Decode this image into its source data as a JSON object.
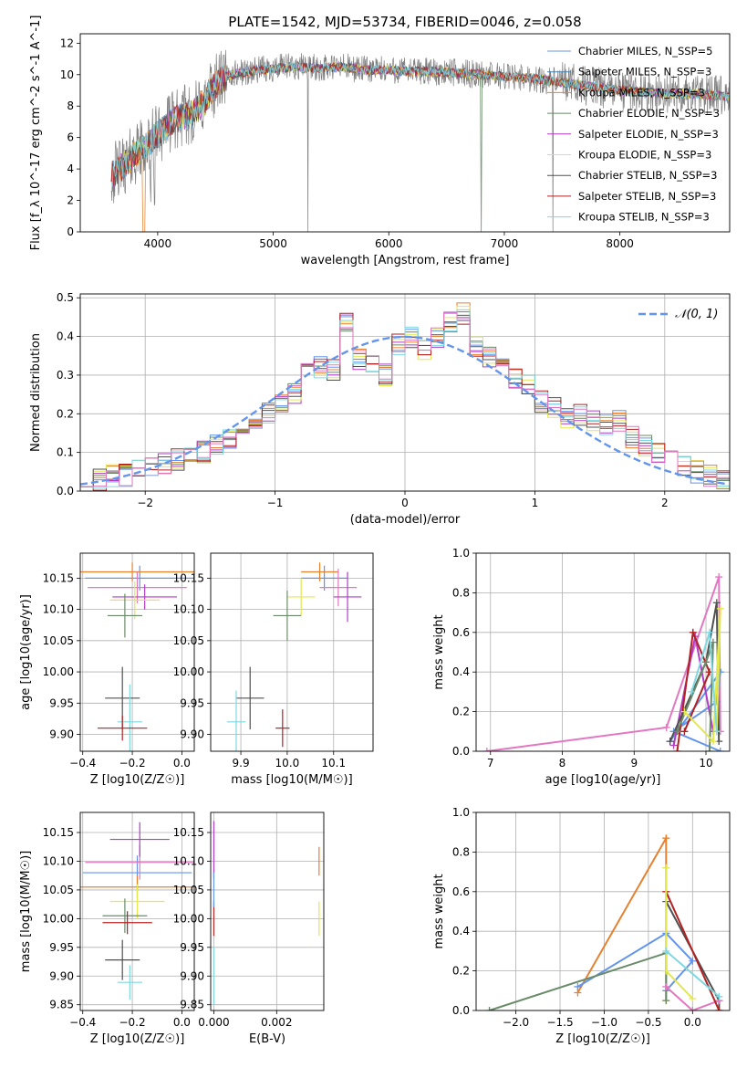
{
  "figure": {
    "title": "PLATE=1542, MJD=53734, FIBERID=0046, z=0.058"
  },
  "chart_data": [
    {
      "id": "spectrum",
      "type": "line",
      "xlabel": "wavelength [Angstrom, rest frame]",
      "ylabel": "Flux [f_λ 10^-17 erg cm^-2 s^-1 A^-1]",
      "xlim": [
        3330,
        8950
      ],
      "ylim": [
        0,
        12.6
      ],
      "xticks": [
        4000,
        5000,
        6000,
        7000,
        8000
      ],
      "yticks": [
        0,
        2,
        4,
        6,
        8,
        10,
        12
      ],
      "grid": false,
      "legend": "right",
      "data_series": {
        "name": "data",
        "color": "#7f7f7f"
      },
      "continuum_anchors": [
        [
          3600,
          3.6
        ],
        [
          3700,
          4.2
        ],
        [
          3800,
          4.9
        ],
        [
          3900,
          5.5
        ],
        [
          4000,
          6.2
        ],
        [
          4100,
          6.9
        ],
        [
          4200,
          7.3
        ],
        [
          4300,
          7.5
        ],
        [
          4400,
          8.2
        ],
        [
          4500,
          9.4
        ],
        [
          4600,
          9.9
        ],
        [
          4700,
          10.1
        ],
        [
          4800,
          10.2
        ],
        [
          5000,
          10.4
        ],
        [
          5200,
          10.5
        ],
        [
          5400,
          10.4
        ],
        [
          5600,
          10.5
        ],
        [
          5800,
          10.3
        ],
        [
          6000,
          10.3
        ],
        [
          6200,
          10.2
        ],
        [
          6400,
          10.2
        ],
        [
          6600,
          10.1
        ],
        [
          6800,
          10.0
        ],
        [
          7000,
          9.9
        ],
        [
          7200,
          9.8
        ],
        [
          7400,
          9.6
        ],
        [
          7600,
          9.4
        ],
        [
          7800,
          9.2
        ],
        [
          8000,
          9.0
        ],
        [
          8200,
          8.9
        ],
        [
          8400,
          8.8
        ],
        [
          8600,
          8.8
        ],
        [
          8800,
          8.7
        ],
        [
          8950,
          8.6
        ]
      ],
      "series": [
        {
          "name": "Chabrier MILES, N_SSP=5",
          "color": "#6495ed"
        },
        {
          "name": "Salpeter MILES, N_SSP=3",
          "color": "#4682b4"
        },
        {
          "name": "Kroupa MILES, N_SSP=3",
          "color": "#e6812f"
        },
        {
          "name": "Chabrier ELODIE, N_SSP=3",
          "color": "#698b69"
        },
        {
          "name": "Salpeter ELODIE, N_SSP=3",
          "color": "#b03cc8"
        },
        {
          "name": "Kroupa ELODIE, N_SSP=3",
          "color": "#e3e84c"
        },
        {
          "name": "Chabrier STELIB, N_SSP=3",
          "color": "#505050"
        },
        {
          "name": "Salpeter STELIB, N_SSP=3",
          "color": "#b22222"
        },
        {
          "name": "Kroupa STELIB, N_SSP=3",
          "color": "#7fd8e0"
        }
      ]
    },
    {
      "id": "residuals",
      "type": "line",
      "xlabel": "(data-model)/error",
      "ylabel": "Normed distribution",
      "xlim": [
        -2.5,
        2.5
      ],
      "ylim": [
        0,
        0.51
      ],
      "xticks": [
        -2,
        -1,
        0,
        1,
        2
      ],
      "yticks": [
        0.0,
        0.1,
        0.2,
        0.3,
        0.4,
        0.5
      ],
      "grid": true,
      "legend": "top-right",
      "gaussian": {
        "name": "N(0,1)",
        "label_text": "𝒩(0, 1)",
        "color": "#6495ed"
      },
      "bins": [
        -2.5,
        -2.4,
        -2.3,
        -2.2,
        -2.1,
        -2.0,
        -1.9,
        -1.8,
        -1.7,
        -1.6,
        -1.5,
        -1.4,
        -1.3,
        -1.2,
        -1.1,
        -1.0,
        -0.9,
        -0.8,
        -0.7,
        -0.6,
        -0.5,
        -0.4,
        -0.3,
        -0.2,
        -0.1,
        0.0,
        0.1,
        0.2,
        0.3,
        0.4,
        0.5,
        0.6,
        0.7,
        0.8,
        0.9,
        1.0,
        1.1,
        1.2,
        1.3,
        1.4,
        1.5,
        1.6,
        1.7,
        1.8,
        1.9,
        2.0,
        2.1,
        2.2,
        2.3,
        2.4
      ],
      "base": [
        0.02,
        0.03,
        0.04,
        0.04,
        0.05,
        0.06,
        0.07,
        0.08,
        0.1,
        0.1,
        0.12,
        0.13,
        0.15,
        0.19,
        0.2,
        0.23,
        0.25,
        0.3,
        0.32,
        0.31,
        0.43,
        0.34,
        0.33,
        0.3,
        0.38,
        0.4,
        0.36,
        0.4,
        0.44,
        0.46,
        0.37,
        0.35,
        0.35,
        0.29,
        0.27,
        0.23,
        0.22,
        0.19,
        0.2,
        0.18,
        0.17,
        0.18,
        0.14,
        0.12,
        0.1,
        0.08,
        0.06,
        0.05,
        0.04,
        0.03
      ],
      "hist_series": [
        {
          "color": "#6495ed"
        },
        {
          "color": "#e6812f"
        },
        {
          "color": "#698b69"
        },
        {
          "color": "#b03cc8"
        },
        {
          "color": "#e3e84c"
        },
        {
          "color": "#505050"
        },
        {
          "color": "#b22222"
        },
        {
          "color": "#7fd8e0"
        },
        {
          "color": "#e377c2"
        }
      ]
    },
    {
      "id": "z_vs_age",
      "type": "scatter",
      "xlabel": "Z [log10(Z/Z☉)]",
      "ylabel": "age [log10(age/yr)]",
      "xlim": [
        -0.41,
        0.05
      ],
      "ylim": [
        9.873,
        10.19
      ],
      "xticks": [
        -0.4,
        -0.2,
        0.0
      ],
      "yticks": [
        9.9,
        9.95,
        10.0,
        10.05,
        10.1,
        10.15
      ],
      "grid": true,
      "points": [
        {
          "x": -0.17,
          "y": 10.15,
          "xerr": 0.22,
          "yerr": 0.02,
          "color": "#6495ed"
        },
        {
          "x": -0.2,
          "y": 10.16,
          "xerr": 0.25,
          "yerr": 0.015,
          "color": "#e6812f"
        },
        {
          "x": -0.18,
          "y": 10.135,
          "xerr": 0.2,
          "yerr": 0.025,
          "color": "#e377c2"
        },
        {
          "x": -0.15,
          "y": 10.12,
          "xerr": 0.13,
          "yerr": 0.02,
          "color": "#b03cc8"
        },
        {
          "x": -0.19,
          "y": 10.115,
          "xerr": 0.1,
          "yerr": 0.03,
          "color": "#e3e84c"
        },
        {
          "x": -0.23,
          "y": 10.09,
          "xerr": 0.07,
          "yerr": 0.035,
          "color": "#698b69"
        },
        {
          "x": -0.24,
          "y": 9.958,
          "xerr": 0.07,
          "yerr": 0.05,
          "color": "#505050"
        },
        {
          "x": -0.21,
          "y": 9.92,
          "xerr": 0.05,
          "yerr": 0.06,
          "color": "#7fd8e0"
        },
        {
          "x": -0.24,
          "y": 9.91,
          "xerr": 0.1,
          "yerr": 0.02,
          "color": "#b22222"
        }
      ]
    },
    {
      "id": "mass_vs_age",
      "type": "scatter",
      "xlabel": "mass [log10(M/M☉)]",
      "ylabel": "",
      "xlim": [
        9.835,
        10.185
      ],
      "ylim": [
        9.873,
        10.19
      ],
      "xticks": [
        9.9,
        10.0,
        10.1
      ],
      "yticks": [
        9.9,
        9.95,
        10.0,
        10.05,
        10.1,
        10.15
      ],
      "grid": true,
      "points": [
        {
          "x": 10.08,
          "y": 10.15,
          "xerr": 0.05,
          "yerr": 0.02,
          "color": "#6495ed"
        },
        {
          "x": 10.07,
          "y": 10.16,
          "xerr": 0.04,
          "yerr": 0.015,
          "color": "#e6812f"
        },
        {
          "x": 10.11,
          "y": 10.135,
          "xerr": 0.04,
          "yerr": 0.03,
          "color": "#e377c2"
        },
        {
          "x": 10.13,
          "y": 10.12,
          "xerr": 0.03,
          "yerr": 0.04,
          "color": "#b03cc8"
        },
        {
          "x": 10.03,
          "y": 10.12,
          "xerr": 0.03,
          "yerr": 0.03,
          "color": "#e3e84c"
        },
        {
          "x": 10.0,
          "y": 10.09,
          "xerr": 0.03,
          "yerr": 0.04,
          "color": "#698b69"
        },
        {
          "x": 9.92,
          "y": 9.958,
          "xerr": 0.03,
          "yerr": 0.05,
          "color": "#505050"
        },
        {
          "x": 9.89,
          "y": 9.92,
          "xerr": 0.02,
          "yerr": 0.05,
          "color": "#7fd8e0"
        },
        {
          "x": 9.99,
          "y": 9.91,
          "xerr": 0.015,
          "yerr": 0.03,
          "color": "#b22222"
        }
      ]
    },
    {
      "id": "age_weights",
      "type": "line",
      "xlabel": "age [log10(age/yr)]",
      "ylabel": "mass weight",
      "xlim": [
        6.8,
        10.33
      ],
      "ylim": [
        0,
        1.0
      ],
      "xticks": [
        7,
        8,
        9,
        10
      ],
      "yticks": [
        0.0,
        0.2,
        0.4,
        0.6,
        0.8,
        1.0
      ],
      "grid": true,
      "series": [
        {
          "color": "#e377c2",
          "x": [
            6.95,
            9.45,
            10.18,
            10.2
          ],
          "y": [
            0.0,
            0.12,
            0.88,
            0.1
          ]
        },
        {
          "color": "#6495ed",
          "x": [
            9.5,
            10.2,
            10.15,
            9.55,
            10.2
          ],
          "y": [
            0.05,
            0.4,
            0.25,
            0.1,
            0.0
          ]
        },
        {
          "color": "#b03cc8",
          "x": [
            9.55,
            9.85,
            10.1
          ],
          "y": [
            0.03,
            0.58,
            0.1
          ]
        },
        {
          "color": "#b22222",
          "x": [
            9.6,
            9.82,
            10.05,
            9.7
          ],
          "y": [
            0.0,
            0.6,
            0.4,
            0.1
          ]
        },
        {
          "color": "#505050",
          "x": [
            9.5,
            10.0,
            10.15,
            10.18
          ],
          "y": [
            0.05,
            0.45,
            0.75,
            0.05
          ]
        },
        {
          "color": "#698b69",
          "x": [
            9.6,
            10.0,
            10.1,
            10.05
          ],
          "y": [
            0.1,
            0.45,
            0.55,
            0.0
          ]
        },
        {
          "color": "#e3e84c",
          "x": [
            9.7,
            10.1,
            10.2,
            10.15
          ],
          "y": [
            0.2,
            0.05,
            0.72,
            0.1
          ]
        },
        {
          "color": "#7fd8e0",
          "x": [
            9.8,
            10.05,
            10.15
          ],
          "y": [
            0.3,
            0.6,
            0.1
          ]
        }
      ]
    },
    {
      "id": "z_vs_mass",
      "type": "scatter",
      "xlabel": "Z [log10(Z/Z☉)]",
      "ylabel": "mass [log10(M/M☉)]",
      "xlim": [
        -0.41,
        0.05
      ],
      "ylim": [
        9.84,
        10.185
      ],
      "xticks": [
        -0.4,
        -0.2,
        0.0
      ],
      "yticks": [
        9.85,
        9.9,
        9.95,
        10.0,
        10.05,
        10.1,
        10.15
      ],
      "grid": true,
      "points": [
        {
          "x": -0.18,
          "y": 10.08,
          "xerr": 0.22,
          "yerr": 0.03,
          "color": "#6495ed"
        },
        {
          "x": -0.18,
          "y": 10.055,
          "xerr": 0.25,
          "yerr": 0.02,
          "color": "#e6812f"
        },
        {
          "x": -0.17,
          "y": 10.098,
          "xerr": 0.22,
          "yerr": 0.03,
          "color": "#e377c2"
        },
        {
          "x": -0.17,
          "y": 10.138,
          "xerr": 0.12,
          "yerr": 0.03,
          "color": "#b03cc8"
        },
        {
          "x": -0.18,
          "y": 10.03,
          "xerr": 0.11,
          "yerr": 0.03,
          "color": "#e3e84c"
        },
        {
          "x": -0.23,
          "y": 10.005,
          "xerr": 0.09,
          "yerr": 0.03,
          "color": "#698b69"
        },
        {
          "x": -0.24,
          "y": 9.928,
          "xerr": 0.07,
          "yerr": 0.035,
          "color": "#505050"
        },
        {
          "x": -0.21,
          "y": 9.889,
          "xerr": 0.05,
          "yerr": 0.03,
          "color": "#7fd8e0"
        },
        {
          "x": -0.22,
          "y": 9.993,
          "xerr": 0.1,
          "yerr": 0.02,
          "color": "#b22222"
        }
      ]
    },
    {
      "id": "ebv_vs_mass",
      "type": "scatter",
      "xlabel": "E(B-V)",
      "ylabel": "",
      "xlim": [
        -0.0001,
        0.0035
      ],
      "ylim": [
        9.84,
        10.185
      ],
      "xticks": [
        0.0,
        0.002
      ],
      "xtick_labels": [
        "0.000",
        "0.002"
      ],
      "yticks": [
        9.85,
        9.9,
        9.95,
        10.0,
        10.05,
        10.1,
        10.15
      ],
      "grid": true,
      "points": [
        {
          "x": 0.0,
          "y": 10.12,
          "xerr": 0.0,
          "yerr": 0.05,
          "color": "#b03cc8"
        },
        {
          "x": 0.0,
          "y": 10.0,
          "xerr": 0.0,
          "yerr": 0.03,
          "color": "#b22222"
        },
        {
          "x": 0.0,
          "y": 9.9,
          "xerr": 0.0,
          "yerr": 0.05,
          "color": "#7fd8e0"
        },
        {
          "x": 0.0,
          "y": 10.05,
          "xerr": 0.0,
          "yerr": 0.03,
          "color": "#6495ed"
        },
        {
          "x": 0.00335,
          "y": 10.1,
          "xerr": 0.0,
          "yerr": 0.025,
          "color": "#e6812f"
        },
        {
          "x": 0.00335,
          "y": 10.0,
          "xerr": 0.0,
          "yerr": 0.03,
          "color": "#e3e84c"
        }
      ]
    },
    {
      "id": "z_weights",
      "type": "line",
      "xlabel": "Z [log10(Z/Z☉)]",
      "ylabel": "mass weight",
      "xlim": [
        -2.45,
        0.42
      ],
      "ylim": [
        0,
        1.0
      ],
      "xticks": [
        -2.0,
        -1.5,
        -1.0,
        -0.5,
        0.0
      ],
      "yticks": [
        0.0,
        0.2,
        0.4,
        0.6,
        0.8,
        1.0
      ],
      "grid": true,
      "series": [
        {
          "color": "#e6812f",
          "x": [
            -1.3,
            -0.3,
            -0.3
          ],
          "y": [
            0.09,
            0.87,
            0.05
          ]
        },
        {
          "color": "#6495ed",
          "x": [
            -1.3,
            -0.3,
            0.0,
            -0.3
          ],
          "y": [
            0.12,
            0.39,
            0.25,
            0.1
          ]
        },
        {
          "color": "#698b69",
          "x": [
            -2.3,
            -0.3,
            -0.3
          ],
          "y": [
            0.0,
            0.29,
            0.05
          ]
        },
        {
          "color": "#505050",
          "x": [
            -0.3,
            0.3,
            0.3
          ],
          "y": [
            0.55,
            0.05,
            0.0
          ]
        },
        {
          "color": "#e377c2",
          "x": [
            -0.3,
            0.0,
            0.3
          ],
          "y": [
            0.12,
            0.0,
            0.05
          ]
        },
        {
          "color": "#b22222",
          "x": [
            -0.3,
            0.3
          ],
          "y": [
            0.6,
            0.0
          ]
        },
        {
          "color": "#e3e84c",
          "x": [
            -0.3,
            -0.3,
            0.0
          ],
          "y": [
            0.72,
            0.2,
            0.06
          ]
        },
        {
          "color": "#7fd8e0",
          "x": [
            -0.3,
            0.3
          ],
          "y": [
            0.3,
            0.07
          ]
        }
      ]
    }
  ]
}
